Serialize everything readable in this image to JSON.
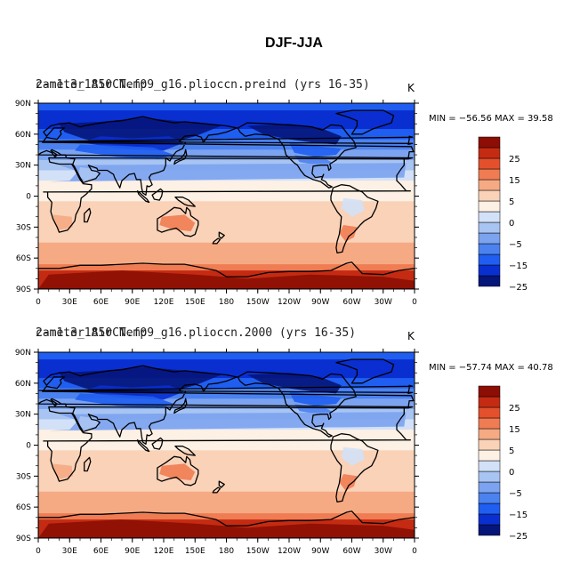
{
  "title": "DJF-JJA",
  "chart_data": [
    {
      "type": "heatmap",
      "title_main": "2-meter Air Temp",
      "title_case": "cam1.3_1850CN.f09_g16.plioccn.preind (yrs 16-35)",
      "units": "K",
      "min_label": "MIN = −56.56",
      "max_label": "MAX =  39.58",
      "xlabels": [
        "0",
        "30E",
        "60E",
        "90E",
        "120E",
        "150E",
        "180",
        "150W",
        "120W",
        "90W",
        "60W",
        "30W",
        "0"
      ],
      "ylabels": [
        "90N",
        "60N",
        "30N",
        "0",
        "30S",
        "60S",
        "90S"
      ]
    },
    {
      "type": "heatmap",
      "title_main": "2-meter Air Temp",
      "title_case": "cam1.3_1850CN.f09_g16.plioccn.2000 (yrs 16-35)",
      "units": "K",
      "min_label": "MIN = −57.74",
      "max_label": "MAX =  40.78",
      "xlabels": [
        "0",
        "30E",
        "60E",
        "90E",
        "120E",
        "150E",
        "180",
        "150W",
        "120W",
        "90W",
        "60W",
        "30W",
        "0"
      ],
      "ylabels": [
        "90N",
        "60N",
        "30N",
        "0",
        "30S",
        "60S",
        "90S"
      ]
    }
  ],
  "colorbar": {
    "colors": [
      "#05157a",
      "#0a2fd0",
      "#1f5ef0",
      "#4b82f0",
      "#7ba3f0",
      "#a8c4f2",
      "#d2e1f7",
      "#fdf0e4",
      "#f9d2b8",
      "#f5aa84",
      "#ef7c52",
      "#e4502c",
      "#c42b12",
      "#8c0e04"
    ],
    "tick_labels": [
      "-25",
      "-15",
      "-5",
      "0",
      "5",
      "15",
      "25"
    ]
  }
}
